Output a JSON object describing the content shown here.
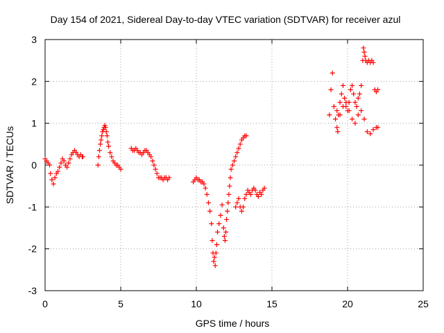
{
  "chart_data": {
    "type": "scatter",
    "title": "Day 154 of 2021, Sidereal Day-to-day VTEC variation (SDTVAR) for receiver azul",
    "xlabel": "GPS time / hours",
    "ylabel": "SDTVAR / TECUs",
    "xlim": [
      0,
      25
    ],
    "ylim": [
      -3,
      3
    ],
    "xticks": [
      0,
      5,
      10,
      15,
      20,
      25
    ],
    "yticks": [
      -3,
      -2,
      -1,
      0,
      1,
      2,
      3
    ],
    "xtick_labels": [
      "0",
      "5",
      "10",
      "15",
      "20",
      "25"
    ],
    "ytick_labels": [
      "-3",
      "-2",
      "-1",
      "0",
      "1",
      "2",
      "3"
    ],
    "grid": true,
    "marker": "+",
    "series": [
      {
        "name": "SDTVAR",
        "color": "#ff0000",
        "x": [
          0.0,
          0.1,
          0.2,
          0.3,
          0.35,
          0.45,
          0.55,
          0.65,
          0.75,
          0.85,
          0.95,
          1.05,
          1.15,
          1.25,
          1.35,
          1.45,
          1.55,
          1.65,
          1.75,
          1.85,
          1.95,
          2.05,
          2.15,
          2.25,
          2.35,
          2.45,
          2.5,
          3.5,
          3.55,
          3.6,
          3.65,
          3.7,
          3.75,
          3.8,
          3.85,
          3.9,
          3.95,
          4.0,
          4.05,
          4.1,
          4.15,
          4.2,
          4.3,
          4.4,
          4.5,
          4.6,
          4.7,
          4.8,
          4.9,
          5.0,
          5.7,
          5.8,
          5.9,
          6.0,
          6.1,
          6.2,
          6.3,
          6.4,
          6.5,
          6.6,
          6.7,
          6.8,
          6.9,
          7.0,
          7.1,
          7.2,
          7.3,
          7.4,
          7.5,
          7.6,
          7.7,
          7.8,
          7.9,
          8.0,
          8.1,
          8.2,
          9.8,
          9.9,
          10.0,
          10.1,
          10.2,
          10.3,
          10.4,
          10.5,
          10.6,
          10.7,
          10.8,
          10.9,
          11.0,
          11.05,
          11.1,
          11.15,
          11.2,
          11.25,
          11.3,
          11.35,
          11.4,
          11.5,
          11.6,
          11.7,
          11.8,
          11.85,
          11.9,
          11.95,
          12.0,
          12.05,
          12.1,
          12.15,
          12.2,
          12.25,
          12.3,
          12.4,
          12.5,
          12.6,
          12.7,
          12.8,
          12.9,
          13.0,
          13.1,
          13.2,
          13.3,
          12.6,
          12.7,
          12.8,
          12.9,
          13.0,
          13.1,
          13.2,
          13.3,
          13.4,
          13.5,
          13.6,
          13.7,
          13.8,
          13.9,
          14.0,
          14.1,
          14.2,
          14.3,
          14.4,
          14.5,
          18.8,
          18.9,
          19.0,
          19.1,
          19.2,
          19.3,
          19.35,
          19.4,
          19.5,
          19.6,
          19.7,
          19.8,
          19.9,
          20.0,
          20.1,
          20.2,
          20.3,
          20.4,
          20.5,
          20.6,
          20.7,
          20.8,
          20.9,
          21.0,
          21.05,
          21.1,
          21.15,
          21.2,
          21.3,
          21.4,
          21.5,
          21.6,
          21.7,
          21.8,
          21.9,
          22.0,
          19.3,
          19.5,
          19.7,
          19.9,
          20.1,
          20.3,
          20.5,
          20.7,
          20.9,
          21.1,
          21.3,
          21.5,
          21.7,
          21.9,
          22.0
        ],
        "y": [
          0.15,
          0.1,
          0.05,
          0.0,
          -0.2,
          -0.35,
          -0.45,
          -0.3,
          -0.2,
          -0.15,
          -0.05,
          0.05,
          0.15,
          0.1,
          0.0,
          -0.05,
          0.05,
          0.15,
          0.25,
          0.3,
          0.35,
          0.3,
          0.25,
          0.2,
          0.25,
          0.2,
          0.2,
          0.0,
          0.2,
          0.35,
          0.5,
          0.6,
          0.7,
          0.8,
          0.85,
          0.9,
          0.95,
          0.9,
          0.8,
          0.7,
          0.55,
          0.45,
          0.3,
          0.2,
          0.1,
          0.05,
          0.0,
          0.0,
          -0.05,
          -0.1,
          0.4,
          0.35,
          0.35,
          0.4,
          0.35,
          0.3,
          0.3,
          0.25,
          0.3,
          0.35,
          0.35,
          0.3,
          0.25,
          0.2,
          0.1,
          0.0,
          -0.1,
          -0.2,
          -0.3,
          -0.3,
          -0.3,
          -0.35,
          -0.3,
          -0.3,
          -0.35,
          -0.3,
          -0.4,
          -0.35,
          -0.3,
          -0.35,
          -0.35,
          -0.4,
          -0.4,
          -0.45,
          -0.55,
          -0.7,
          -0.9,
          -1.1,
          -1.4,
          -1.8,
          -2.1,
          -2.3,
          -2.2,
          -2.4,
          -2.1,
          -1.9,
          -1.6,
          -1.4,
          -1.2,
          -0.95,
          -1.5,
          -1.7,
          -1.8,
          -1.6,
          -1.3,
          -1.1,
          -0.9,
          -0.7,
          -0.5,
          -0.3,
          -0.1,
          0.0,
          0.1,
          0.2,
          0.3,
          0.4,
          0.5,
          0.6,
          0.65,
          0.7,
          0.7,
          -1.0,
          -0.9,
          -0.8,
          -1.0,
          -1.1,
          -1.0,
          -0.8,
          -0.7,
          -0.6,
          -0.65,
          -0.7,
          -0.6,
          -0.55,
          -0.6,
          -0.7,
          -0.75,
          -0.65,
          -0.7,
          -0.6,
          -0.55,
          1.2,
          1.8,
          2.2,
          1.4,
          1.1,
          0.9,
          0.8,
          1.2,
          1.5,
          1.7,
          1.9,
          1.6,
          1.4,
          1.3,
          1.5,
          1.8,
          1.9,
          1.7,
          1.5,
          1.4,
          1.6,
          1.7,
          1.9,
          2.5,
          2.8,
          2.7,
          2.6,
          2.5,
          2.45,
          2.5,
          2.45,
          2.5,
          2.45,
          1.8,
          1.75,
          1.8,
          1.3,
          1.2,
          1.4,
          1.5,
          1.3,
          1.1,
          1.0,
          1.2,
          1.3,
          1.1,
          0.8,
          0.75,
          0.85,
          0.9,
          0.9
        ]
      }
    ]
  }
}
